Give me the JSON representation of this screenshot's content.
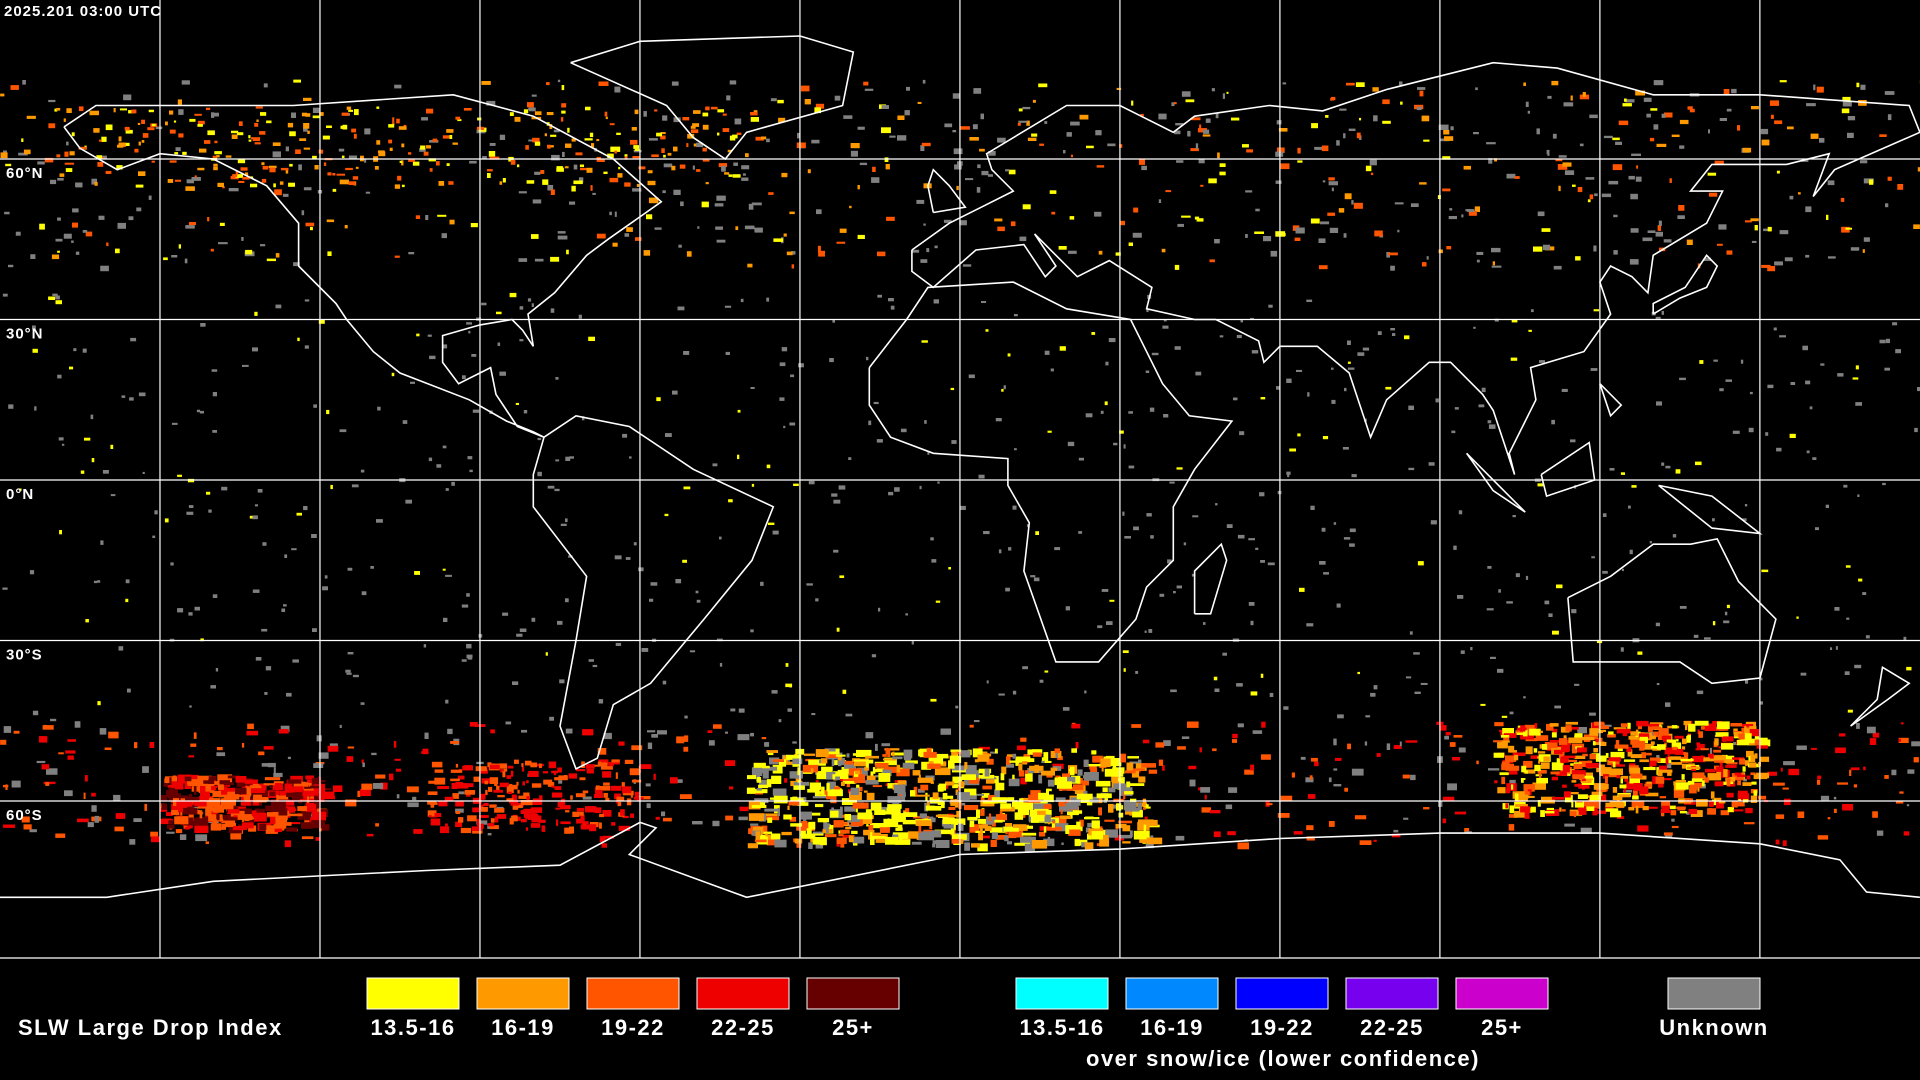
{
  "header": {
    "timestamp": "2025.201 03:00 UTC"
  },
  "map": {
    "latitude_labels": [
      "60°N",
      "30°N",
      "0°N",
      "30°S",
      "60°S"
    ]
  },
  "legend": {
    "title": "SLW Large Drop Index",
    "main": [
      {
        "label": "13.5-16",
        "color": "#ffff00"
      },
      {
        "label": "16-19",
        "color": "#ff9900"
      },
      {
        "label": "19-22",
        "color": "#ff5500"
      },
      {
        "label": "22-25",
        "color": "#ee0000"
      },
      {
        "label": "25+",
        "color": "#660000"
      }
    ],
    "snow_ice": [
      {
        "label": "13.5-16",
        "color": "#00ffff"
      },
      {
        "label": "16-19",
        "color": "#0088ff"
      },
      {
        "label": "19-22",
        "color": "#0000ff"
      },
      {
        "label": "22-25",
        "color": "#7700ee"
      },
      {
        "label": "25+",
        "color": "#cc00cc"
      }
    ],
    "snow_ice_caption": "over snow/ice (lower confidence)",
    "unknown": {
      "label": "Unknown",
      "color": "#808080"
    }
  }
}
